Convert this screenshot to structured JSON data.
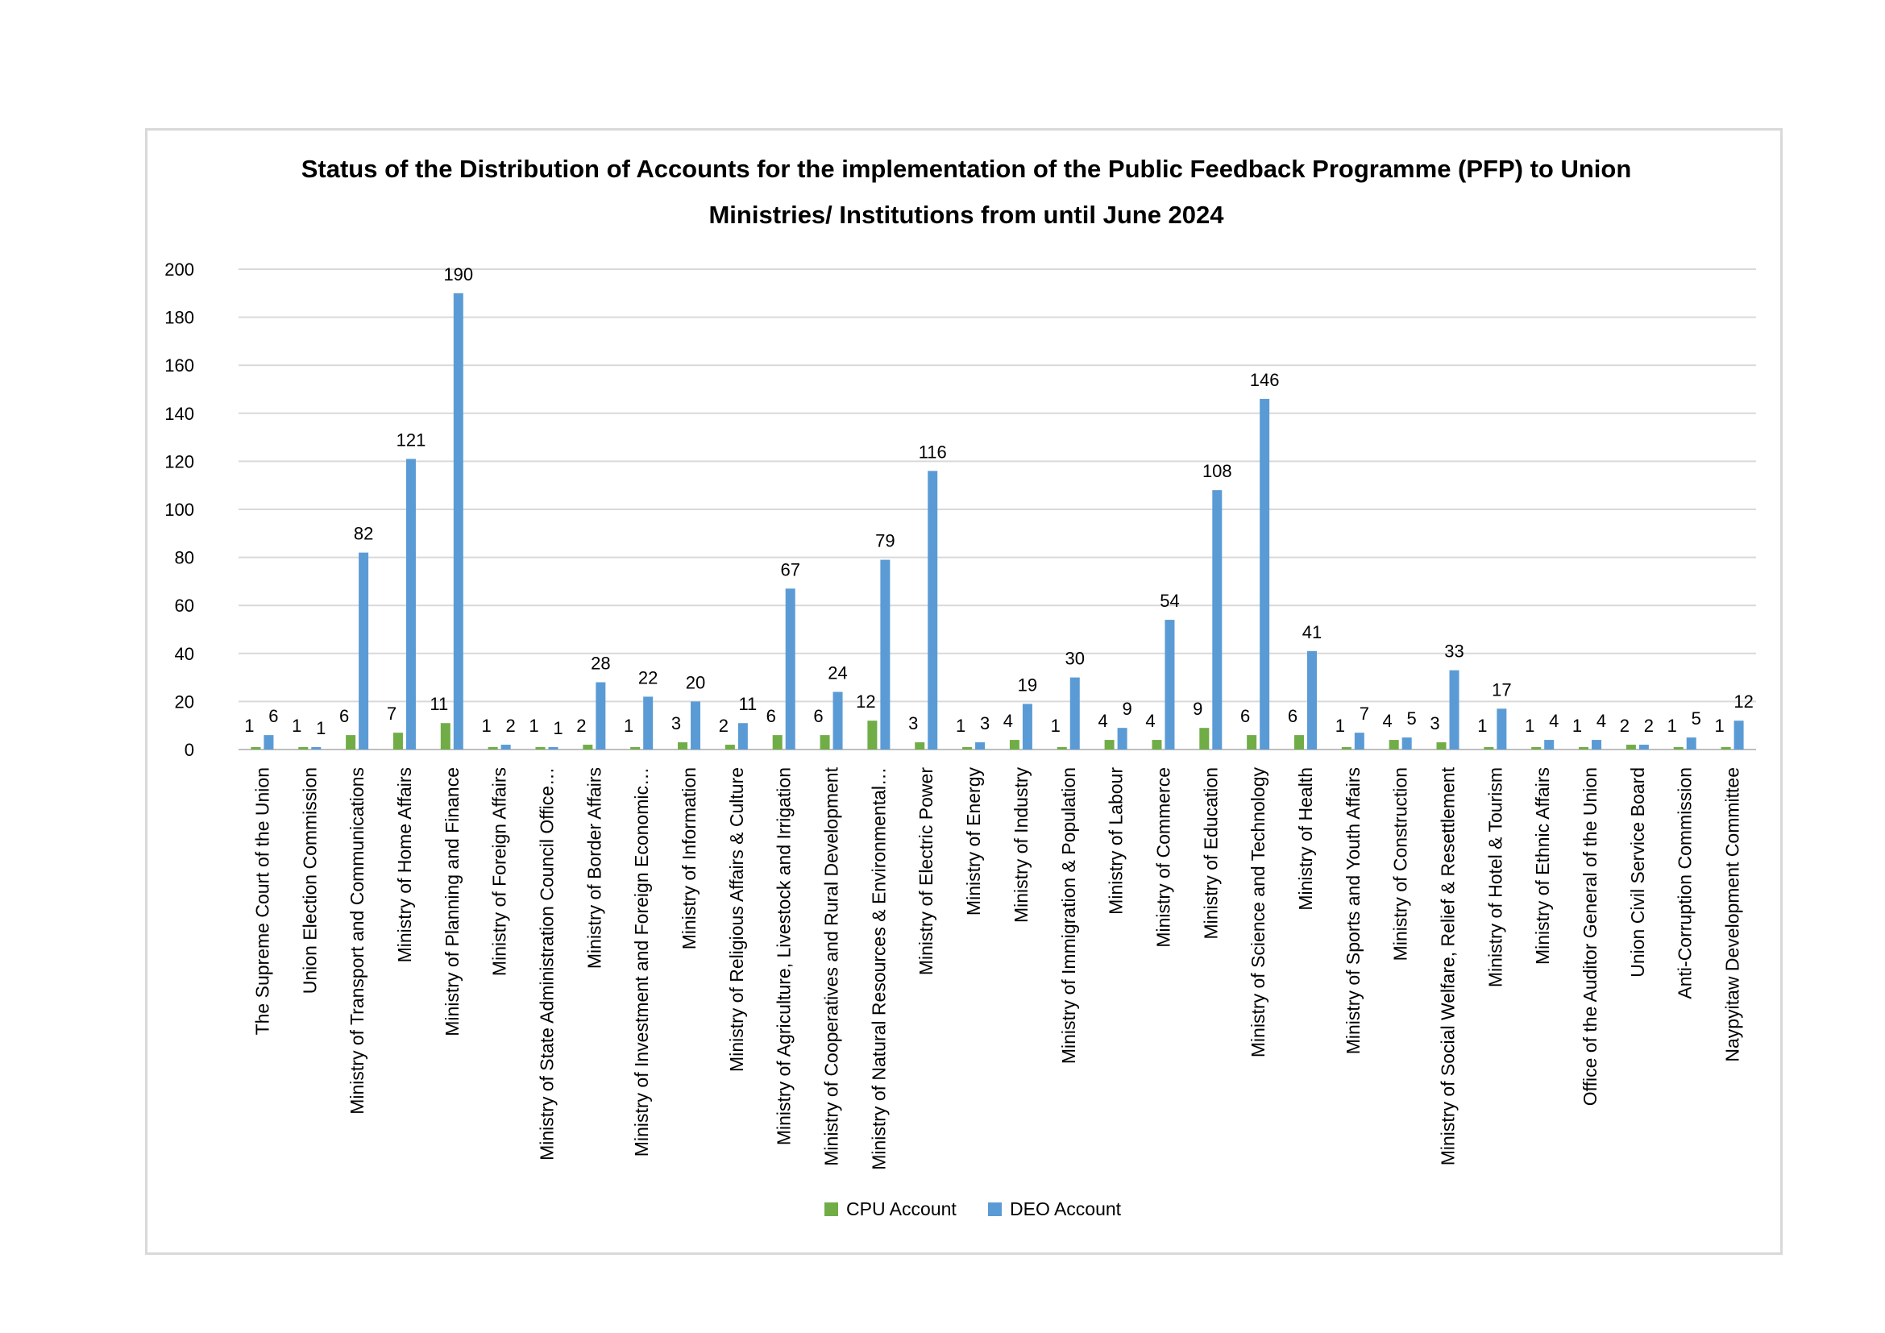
{
  "chart_data": {
    "type": "bar",
    "title": "Status of the Distribution of Accounts for the implementation of the Public Feedback Programme (PFP) to Union Ministries/ Institutions from until  June 2024",
    "title_lines": [
      "Status of the Distribution of Accounts for the implementation of the Public Feedback Programme (PFP) to Union",
      "Ministries/ Institutions from until  June 2024"
    ],
    "xlabel": "",
    "ylabel": "",
    "ylim": [
      0,
      200
    ],
    "y_ticks": [
      0,
      20,
      40,
      60,
      80,
      100,
      120,
      140,
      160,
      180,
      200
    ],
    "grid": true,
    "legend_position": "bottom",
    "categories": [
      "The Supreme Court of the Union",
      "Union Election Commission",
      "Ministry of Transport and Communications",
      "Ministry of Home Affairs",
      "Ministry of Planning and Finance",
      "Ministry of Foreign Affairs",
      "Ministry of State Administration Council Office…",
      "Ministry of Border Affairs",
      "Ministry of Investment and Foreign Economic…",
      "Ministry of Information",
      "Ministry of Religious Affairs & Culture",
      "Ministry of Agriculture, Livestock and Irrigation",
      "Ministry of Cooperatives and Rural Development",
      "Ministry of Natural Resources & Environmental…",
      "Ministry of Electric Power",
      "Ministry of Energy",
      "Ministry of Industry",
      "Ministry of Immigration & Population",
      "Ministry of Labour",
      "Ministry of Commerce",
      "Ministry of Education",
      "Ministry of Science and Technology",
      "Ministry of Health",
      "Ministry of Sports and Youth Affairs",
      "Ministry of Construction",
      "Ministry of Social Welfare, Relief & Resettlement",
      "Ministry of Hotel & Tourism",
      "Ministry of Ethnic Affairs",
      "Office of the Auditor General of the Union",
      "Union Civil Service Board",
      "Anti-Corruption Commission",
      "Naypyitaw Development Committee"
    ],
    "series": [
      {
        "name": "CPU Account",
        "color": "#70ad47",
        "values": [
          1,
          1,
          6,
          7,
          11,
          1,
          1,
          2,
          1,
          3,
          2,
          6,
          6,
          12,
          3,
          1,
          4,
          1,
          4,
          4,
          9,
          6,
          6,
          1,
          4,
          3,
          1,
          1,
          1,
          2,
          1,
          1
        ]
      },
      {
        "name": "DEO Account",
        "color": "#5b9bd5",
        "values": [
          6,
          1,
          82,
          121,
          190,
          2,
          1,
          28,
          22,
          20,
          11,
          67,
          24,
          79,
          116,
          3,
          19,
          30,
          9,
          54,
          108,
          146,
          41,
          7,
          5,
          33,
          17,
          4,
          4,
          2,
          5,
          12
        ]
      }
    ]
  }
}
